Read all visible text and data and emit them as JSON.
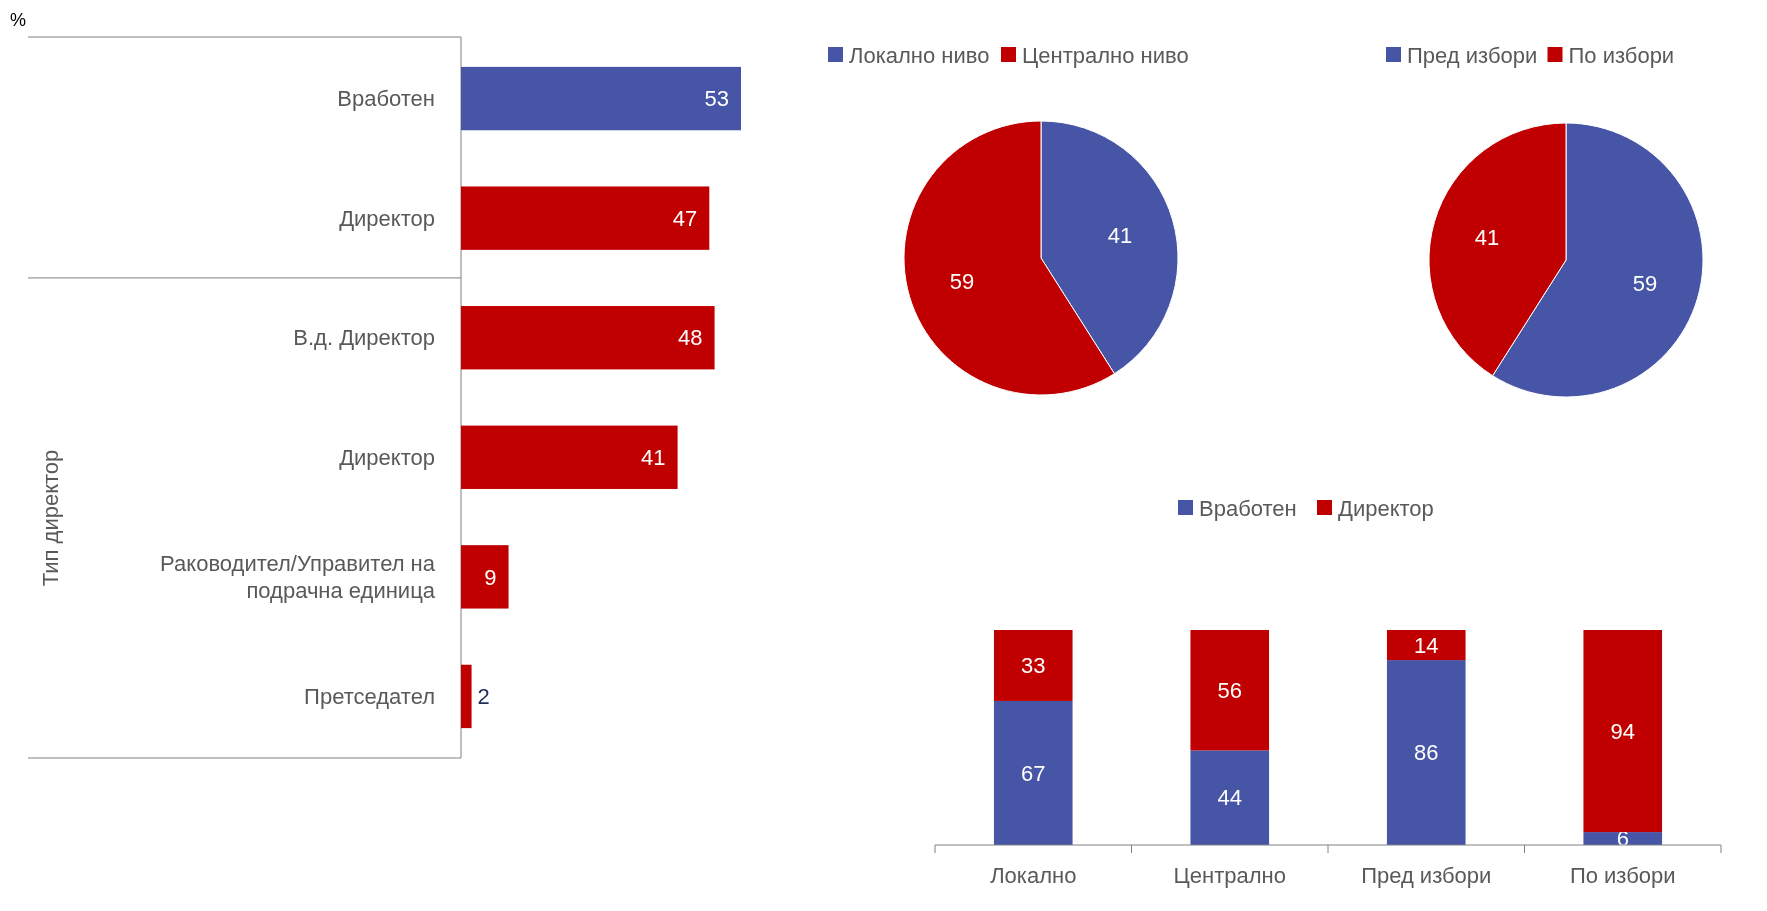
{
  "chart_data": [
    {
      "type": "bar",
      "orientation": "horizontal",
      "categories": [
        "Вработен",
        "Директор",
        "В.д. Директор",
        "Директор",
        "Раководител/Управител на подрачна единица",
        "Претседател"
      ],
      "values": [
        53,
        47,
        48,
        41,
        9,
        2
      ],
      "colors": [
        "#4655a5",
        "#c00000",
        "#c00000",
        "#c00000",
        "#c00000",
        "#c00000"
      ],
      "data_labels": true,
      "annotations": [
        "Тип  директор",
        "%"
      ]
    },
    {
      "type": "pie",
      "categories": [
        "Локално ниво",
        "Централно ниво"
      ],
      "values": [
        41,
        59
      ],
      "colors": [
        "#4655a5",
        "#c00000"
      ],
      "data_labels": true,
      "legend": "top"
    },
    {
      "type": "pie",
      "categories": [
        "Пред избори",
        "По избори"
      ],
      "values": [
        59,
        41
      ],
      "colors": [
        "#4655a5",
        "#c00000"
      ],
      "data_labels": true,
      "legend": "top"
    },
    {
      "type": "bar",
      "stacked": true,
      "categories": [
        "Локално",
        "Централно",
        "Пред избори",
        "По избори"
      ],
      "series": [
        {
          "name": "Вработен",
          "color": "#4655a5",
          "values": [
            67,
            44,
            86,
            6
          ]
        },
        {
          "name": "Директор",
          "color": "#c00000",
          "values": [
            33,
            56,
            14,
            94
          ]
        }
      ],
      "data_labels": true,
      "legend": "top"
    }
  ]
}
